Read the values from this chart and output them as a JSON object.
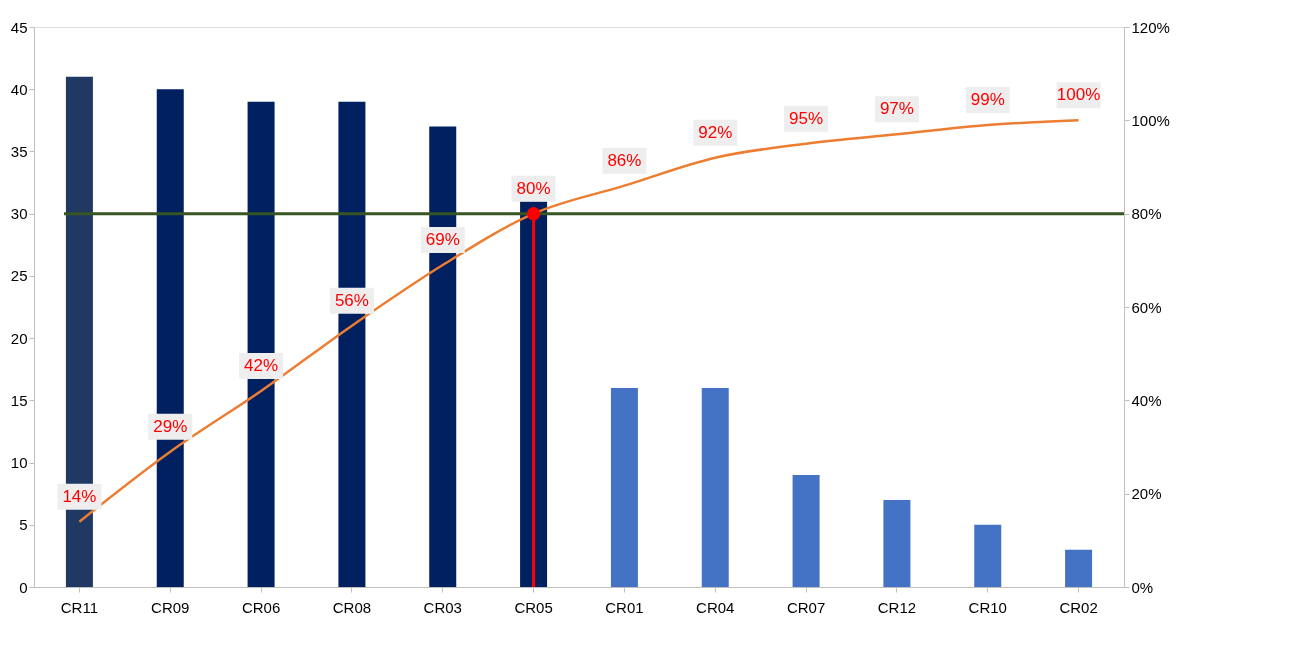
{
  "chart_data": {
    "type": "bar",
    "categories": [
      "CR11",
      "CR09",
      "CR06",
      "CR08",
      "CR03",
      "CR05",
      "CR01",
      "CR04",
      "CR07",
      "CR12",
      "CR10",
      "CR02"
    ],
    "values": [
      41,
      40,
      39,
      39,
      37,
      31,
      16,
      16,
      9,
      7,
      5,
      3
    ],
    "colors": [
      "#203864",
      "#002060",
      "#002060",
      "#002060",
      "#002060",
      "#002060",
      "#4472c4",
      "#4472c4",
      "#4472c4",
      "#4472c4",
      "#4472c4",
      "#4472c4"
    ],
    "series": [
      {
        "type": "line",
        "axis": "y2",
        "color": "#ed7d31",
        "marker": "none",
        "values": [
          14,
          29,
          42,
          56,
          69,
          80,
          86,
          92,
          95,
          97,
          99,
          100
        ],
        "value_labels": [
          "14%",
          "29%",
          "42%",
          "56%",
          "69%",
          "80%",
          "86%",
          "92%",
          "95%",
          "97%",
          "99%",
          "100%"
        ]
      },
      {
        "type": "line",
        "axis": "y2",
        "color": "#ff0000",
        "marker": "none",
        "x": [
          "CR05",
          "CR05"
        ],
        "values": [
          0,
          80
        ]
      },
      {
        "type": "scatter",
        "axis": "y2",
        "color": "#ff0000",
        "marker": "circle",
        "x": [
          "CR05"
        ],
        "values": [
          80
        ]
      }
    ],
    "ref_lines": [
      {
        "axis": "y2",
        "value": 80,
        "color": "#375623"
      }
    ],
    "ylim": [
      0,
      45
    ],
    "yticks": [
      0,
      5,
      10,
      15,
      20,
      25,
      30,
      35,
      40,
      45
    ],
    "y2lim": [
      0,
      120
    ],
    "y2ticks": [
      {
        "value": 0,
        "label": "0%"
      },
      {
        "value": 20,
        "label": "20%"
      },
      {
        "value": 40,
        "label": "40%"
      },
      {
        "value": 60,
        "label": "60%"
      },
      {
        "value": 80,
        "label": "80%"
      },
      {
        "value": 100,
        "label": "100%"
      },
      {
        "value": 120,
        "label": "120%"
      }
    ],
    "grid": false,
    "legend": false
  }
}
